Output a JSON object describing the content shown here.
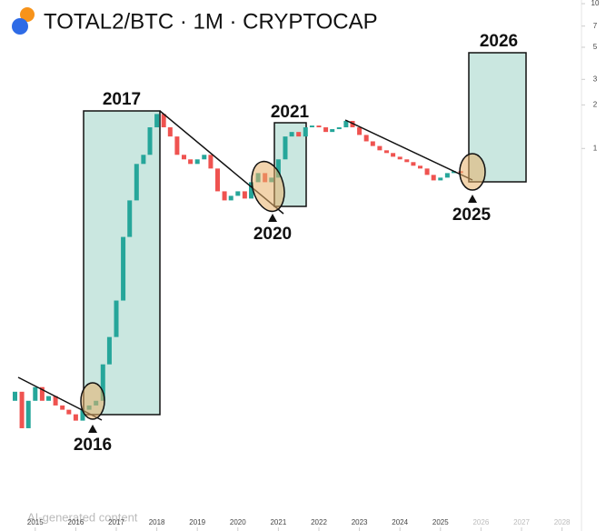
{
  "chart_data": {
    "type": "candlestick",
    "title": "TOTAL2/BTC · 1M · CRYPTOCAP",
    "watermark": "AI-generated content",
    "annotations": [
      "2017",
      "2021",
      "2026",
      "2016",
      "2020",
      "2025"
    ],
    "x": [
      2014.5,
      2014.67,
      2014.83,
      2015,
      2015.17,
      2015.33,
      2015.5,
      2015.67,
      2015.83,
      2016,
      2016.17,
      2016.33,
      2016.5,
      2016.67,
      2016.83,
      2017,
      2017.17,
      2017.33,
      2017.5,
      2017.67,
      2017.83,
      2018,
      2018.17,
      2018.33,
      2018.5,
      2018.67,
      2018.83,
      2019,
      2019.17,
      2019.33,
      2019.5,
      2019.67,
      2019.83,
      2020,
      2020.17,
      2020.33,
      2020.5,
      2020.67,
      2020.83,
      2021,
      2021.17,
      2021.33,
      2021.5,
      2021.67,
      2021.83,
      2022,
      2022.17,
      2022.33,
      2022.5,
      2022.67,
      2022.83,
      2023,
      2023.17,
      2023.33,
      2023.5,
      2023.67,
      2023.83,
      2024,
      2024.17,
      2024.33,
      2024.5,
      2024.67,
      2024.83,
      2025,
      2025.17,
      2025.33,
      2025.5
    ],
    "open": [
      0.0181,
      0.0209,
      0.0117,
      0.0181,
      0.0225,
      0.0181,
      0.0195,
      0.0168,
      0.0157,
      0.0146,
      0.0132,
      0.0157,
      0.0168,
      0.0181,
      0.0323,
      0.0499,
      0.0891,
      0.245,
      0.438,
      0.782,
      0.904,
      1.4,
      1.73,
      1.4,
      1.21,
      0.904,
      0.841,
      0.782,
      0.841,
      0.904,
      0.727,
      0.506,
      0.438,
      0.471,
      0.506,
      0.451,
      0.585,
      0.676,
      0.585,
      0.629,
      0.841,
      1.21,
      1.3,
      1.21,
      1.4,
      1.44,
      1.4,
      1.3,
      1.36,
      1.4,
      1.55,
      1.4,
      1.24,
      1.12,
      1.04,
      0.971,
      0.93,
      0.877,
      0.841,
      0.805,
      0.76,
      0.727,
      0.657,
      0.602,
      0.629,
      0.676,
      0.697
    ],
    "close": [
      0.0209,
      0.0117,
      0.0181,
      0.0225,
      0.0181,
      0.0195,
      0.0168,
      0.0157,
      0.0146,
      0.0132,
      0.0157,
      0.0168,
      0.0181,
      0.0323,
      0.0499,
      0.0891,
      0.245,
      0.438,
      0.782,
      0.904,
      1.4,
      1.73,
      1.4,
      1.21,
      0.904,
      0.841,
      0.782,
      0.841,
      0.904,
      0.727,
      0.506,
      0.438,
      0.471,
      0.506,
      0.451,
      0.585,
      0.676,
      0.585,
      0.629,
      0.841,
      1.21,
      1.3,
      1.21,
      1.4,
      1.44,
      1.4,
      1.3,
      1.36,
      1.4,
      1.55,
      1.4,
      1.24,
      1.12,
      1.04,
      0.971,
      0.93,
      0.877,
      0.841,
      0.805,
      0.76,
      0.727,
      0.657,
      0.602,
      0.629,
      0.676,
      0.697,
      0.676
    ],
    "up_color": "#26a69a",
    "down_color": "#ef5350",
    "log_y": true,
    "xlim": [
      2014.13,
      2028.48
    ],
    "xticks": [
      2015,
      2016,
      2017,
      2018,
      2019,
      2020,
      2021,
      2022,
      2023,
      2024,
      2025,
      2026,
      2027,
      2028
    ],
    "ylim": [
      0.0026,
      10.6
    ],
    "yticks": [
      1,
      2,
      3,
      5,
      7,
      10
    ]
  }
}
